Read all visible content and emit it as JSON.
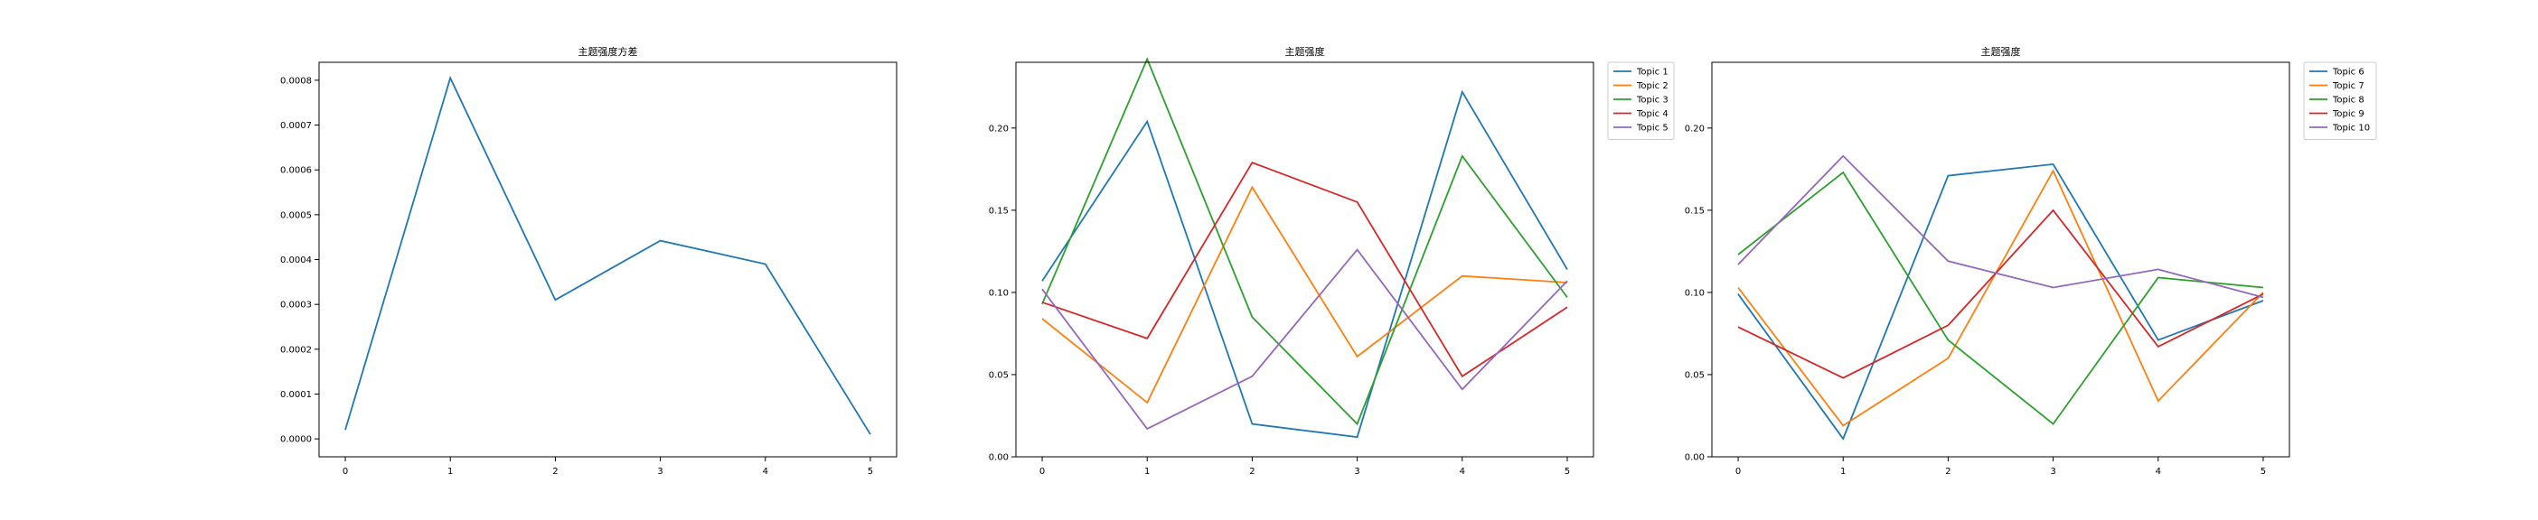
{
  "chart_data": [
    {
      "type": "line",
      "title": "主题强度方差",
      "x": [
        0,
        1,
        2,
        3,
        4,
        5
      ],
      "xticks": [
        "0",
        "1",
        "2",
        "3",
        "4",
        "5"
      ],
      "xlim": [
        -0.25,
        5.25
      ],
      "ylim": [
        -4e-05,
        0.00084
      ],
      "yticks": [
        "0.0000",
        "0.0001",
        "0.0002",
        "0.0003",
        "0.0004",
        "0.0005",
        "0.0006",
        "0.0007",
        "0.0008"
      ],
      "ytick_values": [
        0,
        0.0001,
        0.0002,
        0.0003,
        0.0004,
        0.0005,
        0.0006,
        0.0007,
        0.0008
      ],
      "series": [
        {
          "color": "#1f77b4",
          "values": [
            2e-05,
            0.000805,
            0.00031,
            0.000442,
            0.00039,
            1e-05
          ]
        }
      ],
      "legend": "none"
    },
    {
      "type": "line",
      "title": "主题强度",
      "x": [
        0,
        1,
        2,
        3,
        4,
        5
      ],
      "xticks": [
        "0",
        "1",
        "2",
        "3",
        "4",
        "5"
      ],
      "xlim": [
        -0.25,
        5.25
      ],
      "ylim": [
        0,
        0.24
      ],
      "yticks": [
        "0.00",
        "0.05",
        "0.10",
        "0.15",
        "0.20"
      ],
      "ytick_values": [
        0,
        0.05,
        0.1,
        0.15,
        0.2
      ],
      "legend": "outside-upper-right",
      "series": [
        {
          "name": "Topic 1",
          "color": "#1f77b4",
          "values": [
            0.107,
            0.204,
            0.02,
            0.012,
            0.222,
            0.114
          ]
        },
        {
          "name": "Topic 2",
          "color": "#ff7f0e",
          "values": [
            0.084,
            0.033,
            0.164,
            0.061,
            0.11,
            0.106
          ]
        },
        {
          "name": "Topic 3",
          "color": "#2ca02c",
          "values": [
            0.093,
            0.242,
            0.085,
            0.02,
            0.183,
            0.097
          ]
        },
        {
          "name": "Topic 4",
          "color": "#d62728",
          "values": [
            0.094,
            0.072,
            0.179,
            0.155,
            0.049,
            0.091
          ]
        },
        {
          "name": "Topic 5",
          "color": "#9467bd",
          "values": [
            0.102,
            0.017,
            0.049,
            0.126,
            0.041,
            0.107
          ]
        }
      ]
    },
    {
      "type": "line",
      "title": "主题强度",
      "x": [
        0,
        1,
        2,
        3,
        4,
        5
      ],
      "xticks": [
        "0",
        "1",
        "2",
        "3",
        "4",
        "5"
      ],
      "xlim": [
        -0.25,
        5.25
      ],
      "ylim": [
        0,
        0.24
      ],
      "yticks": [
        "0.00",
        "0.05",
        "0.10",
        "0.15",
        "0.20"
      ],
      "ytick_values": [
        0,
        0.05,
        0.1,
        0.15,
        0.2
      ],
      "legend": "outside-upper-right",
      "series": [
        {
          "name": "Topic 6",
          "color": "#1f77b4",
          "values": [
            0.099,
            0.011,
            0.171,
            0.178,
            0.071,
            0.095
          ]
        },
        {
          "name": "Topic 7",
          "color": "#ff7f0e",
          "values": [
            0.103,
            0.019,
            0.06,
            0.174,
            0.034,
            0.1
          ]
        },
        {
          "name": "Topic 8",
          "color": "#2ca02c",
          "values": [
            0.123,
            0.173,
            0.071,
            0.02,
            0.109,
            0.103
          ]
        },
        {
          "name": "Topic 9",
          "color": "#d62728",
          "values": [
            0.079,
            0.048,
            0.08,
            0.15,
            0.067,
            0.099
          ]
        },
        {
          "name": "Topic 10",
          "color": "#9467bd",
          "values": [
            0.117,
            0.183,
            0.119,
            0.103,
            0.114,
            0.097
          ]
        }
      ]
    }
  ]
}
